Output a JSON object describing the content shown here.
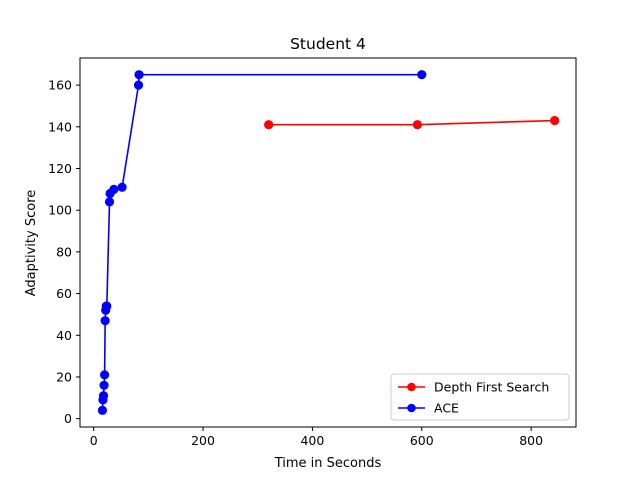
{
  "chart_data": {
    "type": "line",
    "title": "Student 4",
    "xlabel": "Time in Seconds",
    "ylabel": "Adaptivity Score",
    "xlim": [
      -25,
      882
    ],
    "ylim": [
      -4,
      173
    ],
    "xticks": [
      0,
      200,
      400,
      600,
      800
    ],
    "yticks": [
      0,
      20,
      40,
      60,
      80,
      100,
      120,
      140,
      160
    ],
    "grid": false,
    "legend_position": "lower right",
    "series": [
      {
        "name": "Depth First Search",
        "color": "#ff0000",
        "marker": "circle",
        "x": [
          320,
          592,
          843
        ],
        "y": [
          141,
          141,
          143
        ]
      },
      {
        "name": "ACE",
        "color": "#0000ff",
        "marker": "circle",
        "x": [
          16,
          17,
          18,
          19,
          20,
          21,
          22,
          23,
          24,
          29,
          30,
          37,
          52,
          82,
          83,
          600
        ],
        "y": [
          4,
          9,
          11,
          16,
          21,
          47,
          52,
          54,
          54,
          104,
          108,
          110,
          111,
          160,
          165,
          165
        ]
      }
    ]
  }
}
